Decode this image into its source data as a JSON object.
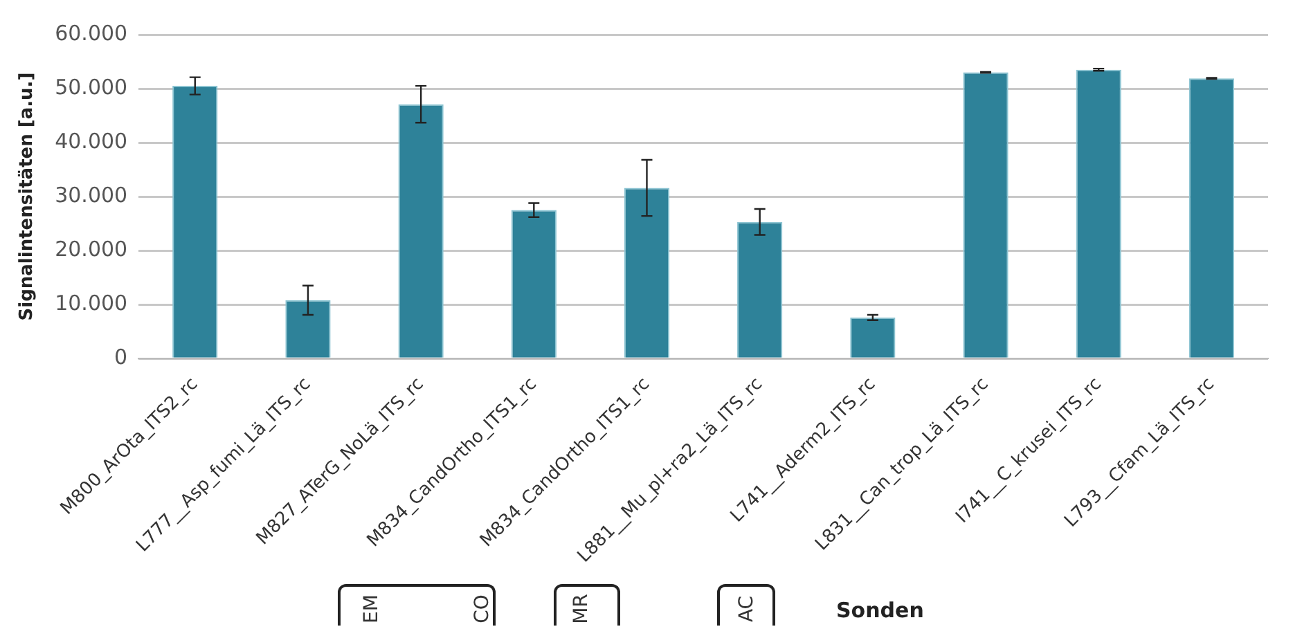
{
  "chart_data": {
    "type": "bar",
    "ylabel": "Signalintensitäten [a.u.]",
    "xlabel": "Sonden",
    "categories": [
      "M800_ArOta_ITS2_rc",
      "L777__Asp_fumi_Lä_ITS_rc",
      "M827_ATerG_NoLä_ITS_rc",
      "M834_CandOrtho_ITS1_rc",
      "M834_CandOrtho_ITS1_rc",
      "L881__Mu_pl+ra2_Lä_ITS_rc",
      "L741__Aderm2_ITS_rc",
      "L831__Can_trop_Lä_ITS_rc",
      "I741__C_krusei_ITS_rc",
      "L793__Cfam_Lä_ITS_rc"
    ],
    "values": [
      50500,
      10800,
      47100,
      27500,
      31600,
      25300,
      7600,
      53000,
      53500,
      51900
    ],
    "errors": [
      1600,
      2700,
      3400,
      1300,
      5200,
      2400,
      500,
      100,
      200,
      100
    ],
    "color": "#2e8299",
    "ylim": [
      0,
      60000
    ],
    "yticks": [
      {
        "value": 0,
        "label": "0"
      },
      {
        "value": 10000,
        "label": "10.000"
      },
      {
        "value": 20000,
        "label": "20.000"
      },
      {
        "value": 30000,
        "label": "30.000"
      },
      {
        "value": 40000,
        "label": "40.000"
      },
      {
        "value": 50000,
        "label": "50.000"
      },
      {
        "value": 60000,
        "label": "60.000"
      }
    ],
    "grid": "y",
    "legend": false,
    "annotations": [
      "EM",
      "CO",
      "MR",
      "AC"
    ]
  }
}
